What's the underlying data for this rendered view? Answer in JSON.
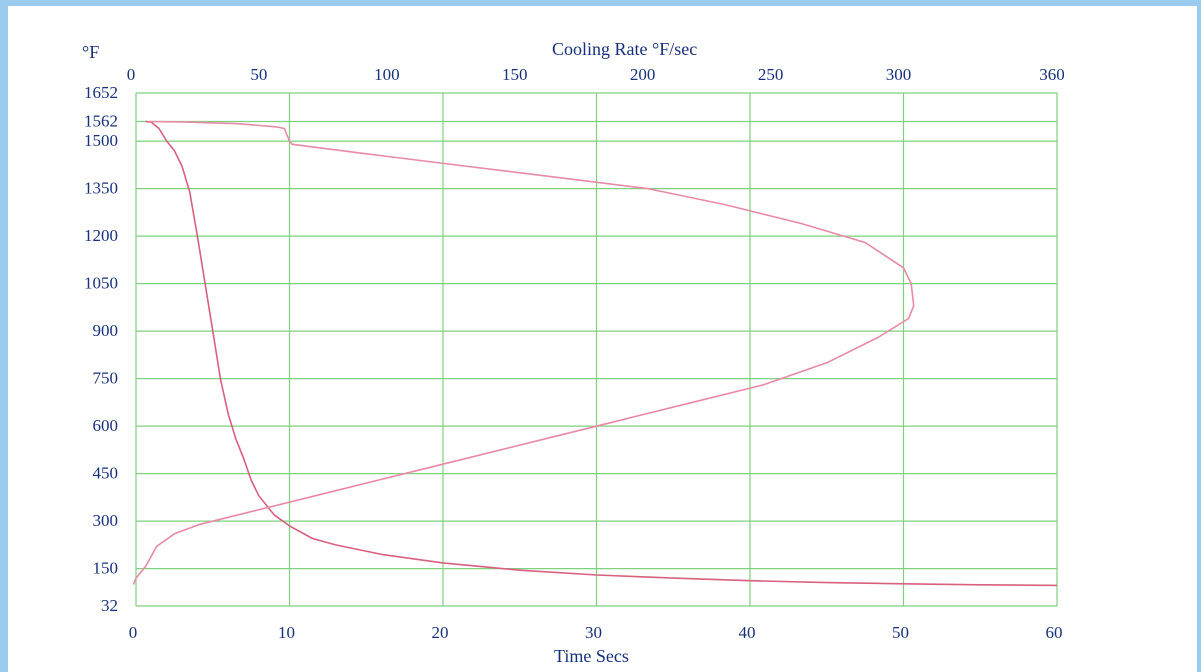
{
  "chart_data": {
    "type": "line",
    "title": "",
    "colors": {
      "grid": "#7fd17f",
      "curve": "#e88aa6",
      "curve_dark": "#d9607f",
      "text": "#16307a",
      "frame": "#9ccbf0"
    },
    "grid": true,
    "y_axis": {
      "unit_label": "°F",
      "ylim": [
        32,
        1652
      ],
      "ticks": [
        32,
        150,
        300,
        450,
        600,
        750,
        900,
        1050,
        1200,
        1350,
        1500,
        1562,
        1652
      ]
    },
    "x_axis_bottom": {
      "label": "Time  Secs",
      "xlim": [
        0,
        60
      ],
      "ticks": [
        0,
        10,
        20,
        30,
        40,
        50,
        60
      ]
    },
    "x_axis_top": {
      "label": "Cooling Rate  °F/sec",
      "xlim": [
        0,
        360
      ],
      "ticks": [
        0,
        50,
        100,
        150,
        200,
        250,
        300,
        360
      ]
    },
    "series": [
      {
        "axis": "bottom",
        "points": [
          [
            0.6,
            1562
          ],
          [
            1.0,
            1560
          ],
          [
            1.5,
            1540
          ],
          [
            2.0,
            1500
          ],
          [
            2.5,
            1470
          ],
          [
            3.0,
            1420
          ],
          [
            3.5,
            1340
          ],
          [
            4.0,
            1200
          ],
          [
            4.5,
            1050
          ],
          [
            5.0,
            900
          ],
          [
            5.5,
            750
          ],
          [
            6.0,
            640
          ],
          [
            6.5,
            560
          ],
          [
            7.0,
            500
          ],
          [
            7.5,
            430
          ],
          [
            8.0,
            380
          ],
          [
            9.0,
            320
          ],
          [
            10.0,
            285
          ],
          [
            11.5,
            245
          ],
          [
            13.0,
            225
          ],
          [
            16.0,
            195
          ],
          [
            20.0,
            168
          ],
          [
            25.0,
            145
          ],
          [
            30.0,
            130
          ],
          [
            35.0,
            120
          ],
          [
            40.0,
            112
          ],
          [
            45.0,
            106
          ],
          [
            50.0,
            102
          ],
          [
            55.0,
            99
          ],
          [
            60.0,
            97
          ]
        ]
      },
      {
        "axis": "top",
        "points": [
          [
            5,
            1562
          ],
          [
            20,
            1560
          ],
          [
            40,
            1555
          ],
          [
            55,
            1545
          ],
          [
            58,
            1540
          ],
          [
            59,
            1520
          ],
          [
            60,
            1500
          ],
          [
            61,
            1490
          ],
          [
            90,
            1460
          ],
          [
            130,
            1420
          ],
          [
            170,
            1380
          ],
          [
            200,
            1350
          ],
          [
            230,
            1300
          ],
          [
            260,
            1240
          ],
          [
            285,
            1180
          ],
          [
            300,
            1100
          ],
          [
            303,
            1050
          ],
          [
            304,
            980
          ],
          [
            302,
            940
          ],
          [
            290,
            880
          ],
          [
            270,
            800
          ],
          [
            245,
            730
          ],
          [
            220,
            680
          ],
          [
            190,
            620
          ],
          [
            160,
            560
          ],
          [
            130,
            500
          ],
          [
            100,
            440
          ],
          [
            70,
            380
          ],
          [
            40,
            320
          ],
          [
            25,
            290
          ],
          [
            15,
            260
          ],
          [
            8,
            220
          ],
          [
            4,
            160
          ],
          [
            0,
            120
          ],
          [
            -1,
            100
          ]
        ]
      }
    ]
  }
}
